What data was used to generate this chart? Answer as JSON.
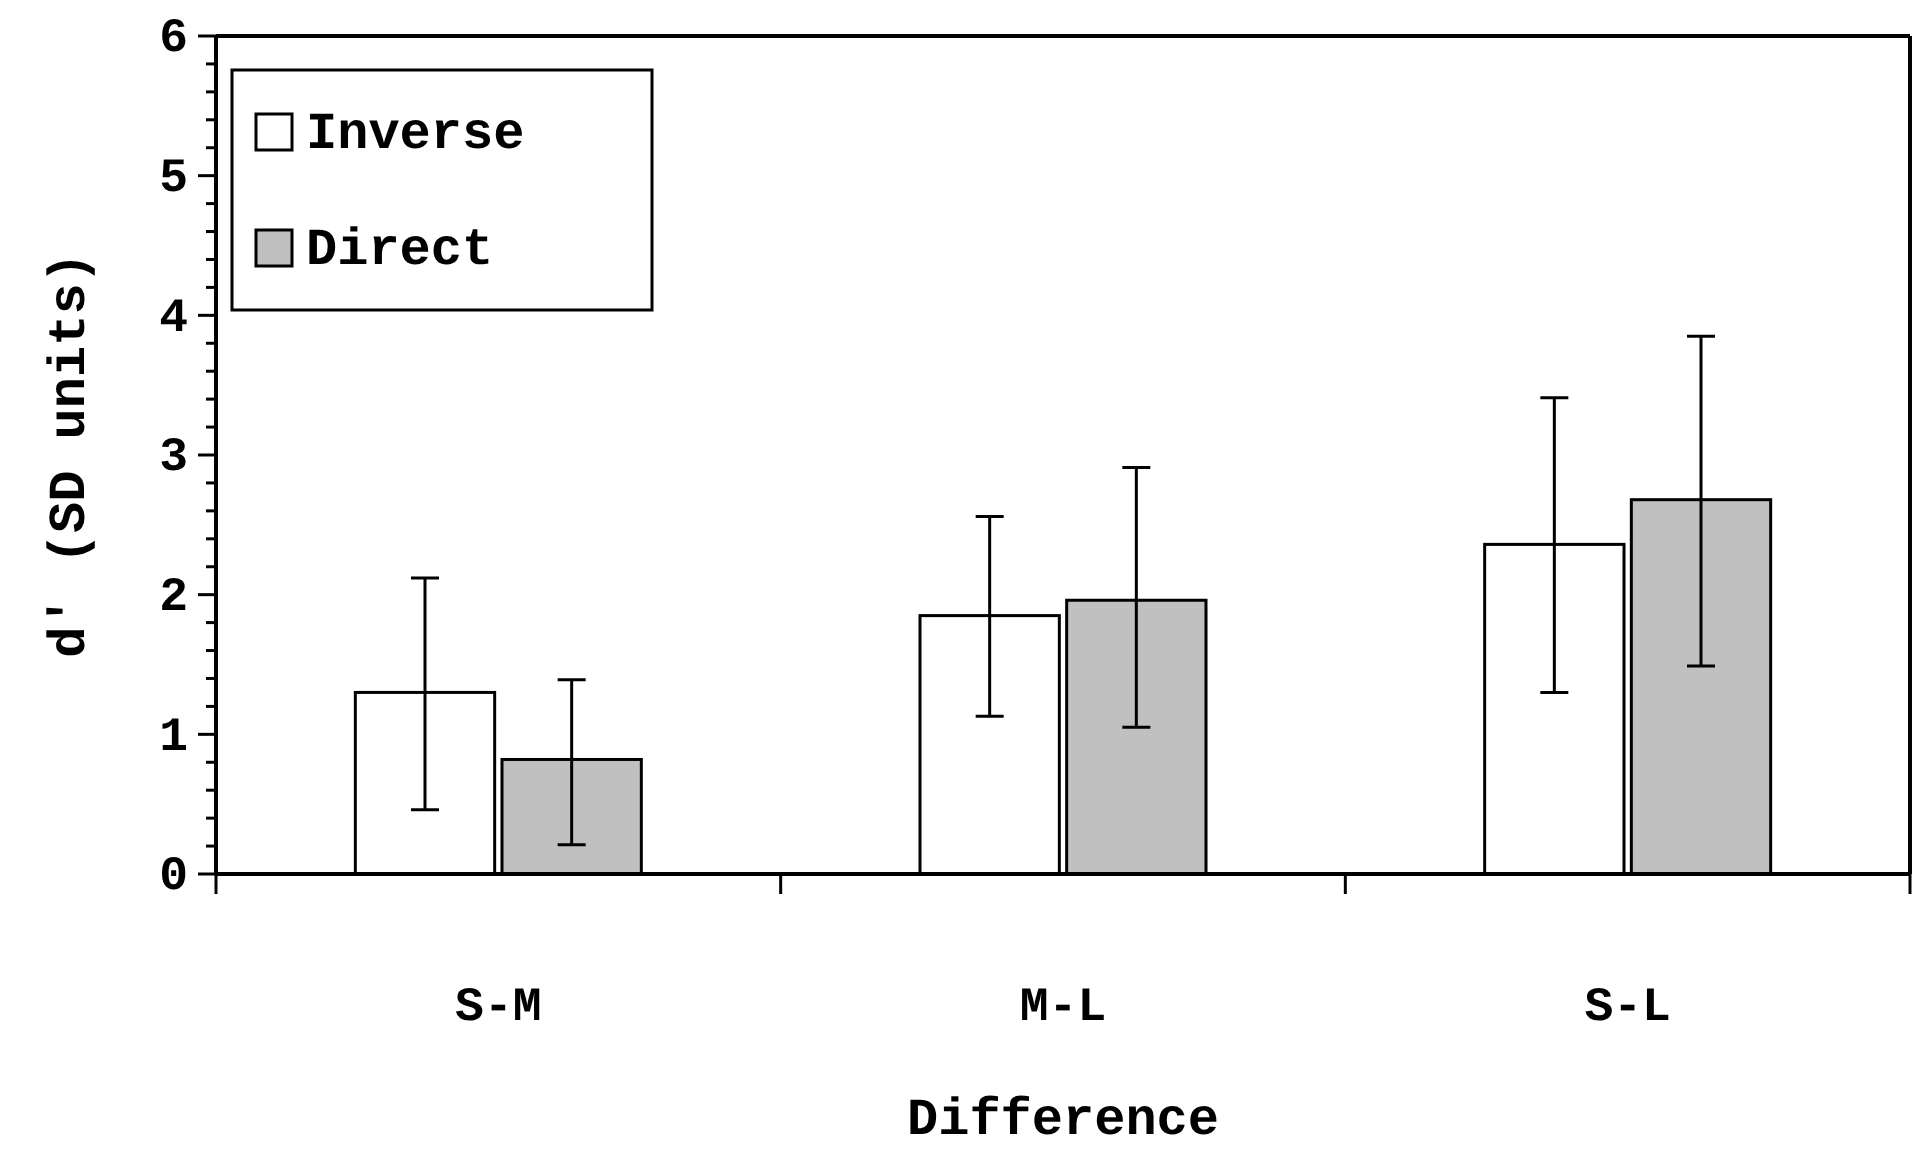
{
  "chart_data": {
    "type": "bar",
    "xlabel": "Difference",
    "ylabel": "d' (SD units)",
    "categories": [
      "S-M",
      "M-L",
      "S-L"
    ],
    "series": [
      {
        "name": "Inverse",
        "color": "#ffffff",
        "values": [
          1.3,
          1.85,
          2.36
        ],
        "errors": [
          [
            0.46,
            2.12
          ],
          [
            1.13,
            2.56
          ],
          [
            1.3,
            3.41
          ]
        ]
      },
      {
        "name": "Direct",
        "color": "#c0c0c0",
        "values": [
          0.82,
          1.96,
          2.68
        ],
        "errors": [
          [
            0.21,
            1.39
          ],
          [
            1.05,
            2.91
          ],
          [
            1.49,
            3.85
          ]
        ]
      }
    ],
    "ylim": [
      0,
      6
    ],
    "yticks": [
      0,
      {
        "value": 0.2,
        "label": null
      },
      {
        "value": 0.4,
        "label": null
      },
      {
        "value": 0.6,
        "label": null
      },
      {
        "value": 0.8,
        "label": null
      },
      1,
      {
        "value": 1.2,
        "label": null
      },
      {
        "value": 1.4,
        "label": null
      },
      {
        "value": 1.6,
        "label": null
      },
      {
        "value": 1.8,
        "label": null
      },
      2,
      {
        "value": 2.2,
        "label": null
      },
      {
        "value": 2.4,
        "label": null
      },
      {
        "value": 2.6,
        "label": null
      },
      {
        "value": 2.8,
        "label": null
      },
      3,
      {
        "value": 3.2,
        "label": null
      },
      {
        "value": 3.4,
        "label": null
      },
      {
        "value": 3.6,
        "label": null
      },
      {
        "value": 3.8,
        "label": null
      },
      4,
      {
        "value": 4.2,
        "label": null
      },
      {
        "value": 4.4,
        "label": null
      },
      {
        "value": 4.6,
        "label": null
      },
      {
        "value": 4.8,
        "label": null
      },
      5,
      {
        "value": 5.2,
        "label": null
      },
      {
        "value": 5.4,
        "label": null
      },
      {
        "value": 5.6,
        "label": null
      },
      {
        "value": 5.8,
        "label": null
      },
      6
    ],
    "legend": "top left"
  }
}
